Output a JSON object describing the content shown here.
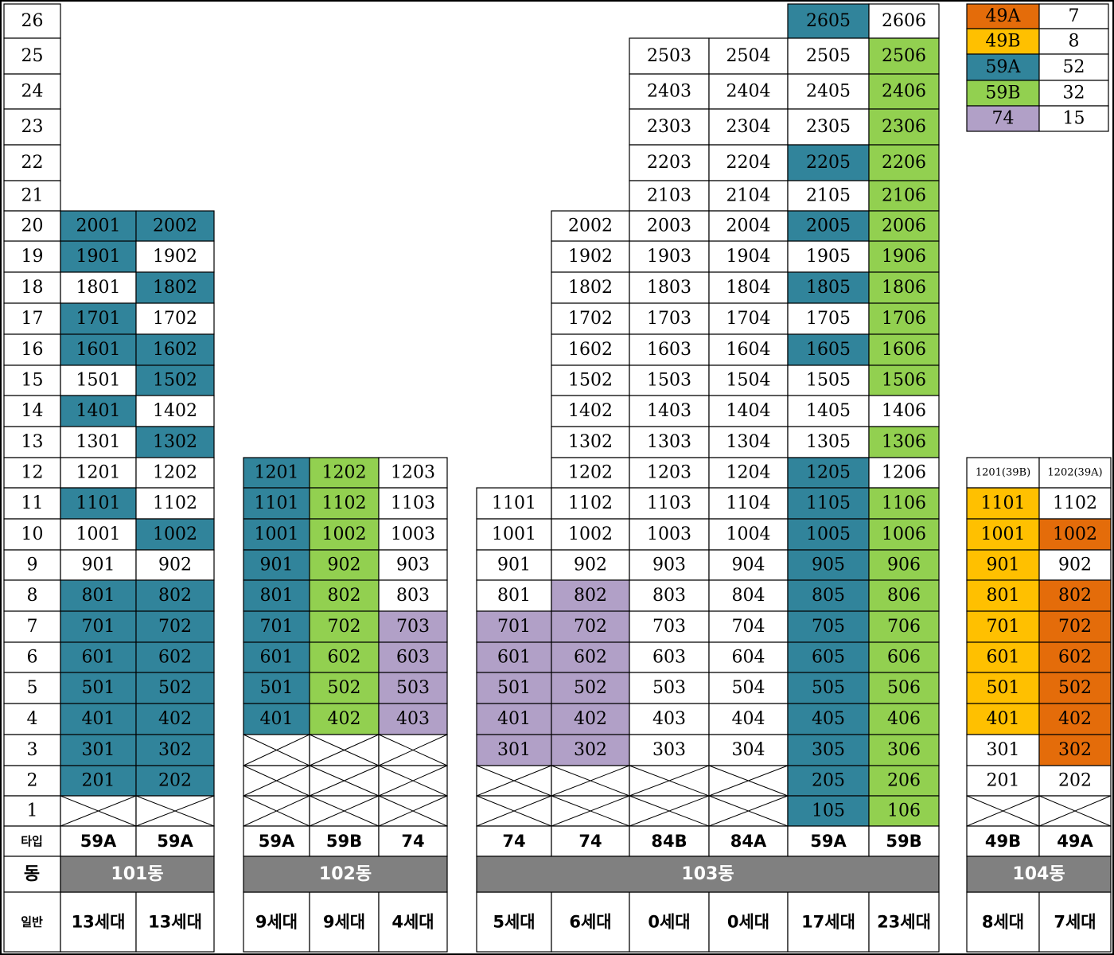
{
  "floor_labels": [
    "26",
    "25",
    "24",
    "23",
    "22",
    "21",
    "20",
    "19",
    "18",
    "17",
    "16",
    "15",
    "14",
    "13",
    "12",
    "11",
    "10",
    "9",
    "8",
    "7",
    "6",
    "5",
    "4",
    "3",
    "2",
    "1"
  ],
  "row_labels": {
    "type": "타입",
    "building": "동",
    "general": "일반"
  },
  "colors": {
    "59A": "#31849b",
    "59B": "#92d050",
    "74": "#b1a0c7",
    "49A": "#e46c0a",
    "49B": "#ffc000",
    "plain": "#ffffff",
    "building_bar": "#808080"
  },
  "legend": [
    {
      "type": "49A",
      "count": "7"
    },
    {
      "type": "49B",
      "count": "8"
    },
    {
      "type": "59A",
      "count": "52"
    },
    {
      "type": "59B",
      "count": "32"
    },
    {
      "type": "74",
      "count": "15"
    }
  ],
  "buildings": [
    {
      "name": "101동",
      "columns": [
        {
          "type_label": "59A",
          "general": "13세대",
          "top_floor": 20,
          "first_floor": 2,
          "units": [
            [
              "2001",
              "59A"
            ],
            [
              "1901",
              "59A"
            ],
            [
              "1801",
              ""
            ],
            [
              "1701",
              "59A"
            ],
            [
              "1601",
              "59A"
            ],
            [
              "1501",
              ""
            ],
            [
              "1401",
              "59A"
            ],
            [
              "1301",
              ""
            ],
            [
              "1201",
              ""
            ],
            [
              "1101",
              "59A"
            ],
            [
              "1001",
              ""
            ],
            [
              "901",
              ""
            ],
            [
              "801",
              "59A"
            ],
            [
              "701",
              "59A"
            ],
            [
              "601",
              "59A"
            ],
            [
              "501",
              "59A"
            ],
            [
              "401",
              "59A"
            ],
            [
              "301",
              "59A"
            ],
            [
              "201",
              "59A"
            ]
          ]
        },
        {
          "type_label": "59A",
          "general": "13세대",
          "top_floor": 20,
          "first_floor": 2,
          "units": [
            [
              "2002",
              "59A"
            ],
            [
              "1902",
              ""
            ],
            [
              "1802",
              "59A"
            ],
            [
              "1702",
              ""
            ],
            [
              "1602",
              "59A"
            ],
            [
              "1502",
              "59A"
            ],
            [
              "1402",
              ""
            ],
            [
              "1302",
              "59A"
            ],
            [
              "1202",
              ""
            ],
            [
              "1102",
              ""
            ],
            [
              "1002",
              "59A"
            ],
            [
              "902",
              ""
            ],
            [
              "802",
              "59A"
            ],
            [
              "702",
              "59A"
            ],
            [
              "602",
              "59A"
            ],
            [
              "502",
              "59A"
            ],
            [
              "402",
              "59A"
            ],
            [
              "302",
              "59A"
            ],
            [
              "202",
              "59A"
            ]
          ]
        }
      ]
    },
    {
      "name": "102동",
      "columns": [
        {
          "type_label": "59A",
          "general": "9세대",
          "top_floor": 12,
          "first_floor": 4,
          "units": [
            [
              "1201",
              "59A"
            ],
            [
              "1101",
              "59A"
            ],
            [
              "1001",
              "59A"
            ],
            [
              "901",
              "59A"
            ],
            [
              "801",
              "59A"
            ],
            [
              "701",
              "59A"
            ],
            [
              "601",
              "59A"
            ],
            [
              "501",
              "59A"
            ],
            [
              "401",
              "59A"
            ]
          ]
        },
        {
          "type_label": "59B",
          "general": "9세대",
          "top_floor": 12,
          "first_floor": 4,
          "units": [
            [
              "1202",
              "59B"
            ],
            [
              "1102",
              "59B"
            ],
            [
              "1002",
              "59B"
            ],
            [
              "902",
              "59B"
            ],
            [
              "802",
              "59B"
            ],
            [
              "702",
              "59B"
            ],
            [
              "602",
              "59B"
            ],
            [
              "502",
              "59B"
            ],
            [
              "402",
              "59B"
            ]
          ]
        },
        {
          "type_label": "74",
          "general": "4세대",
          "top_floor": 12,
          "first_floor": 4,
          "units": [
            [
              "1203",
              ""
            ],
            [
              "1103",
              ""
            ],
            [
              "1003",
              ""
            ],
            [
              "903",
              ""
            ],
            [
              "803",
              ""
            ],
            [
              "703",
              "74"
            ],
            [
              "603",
              "74"
            ],
            [
              "503",
              "74"
            ],
            [
              "403",
              "74"
            ]
          ]
        }
      ]
    },
    {
      "name": "103동",
      "columns": [
        {
          "type_label": "74",
          "general": "5세대",
          "top_floor": 11,
          "first_floor": 3,
          "units": [
            [
              "1101",
              ""
            ],
            [
              "1001",
              ""
            ],
            [
              "901",
              ""
            ],
            [
              "801",
              ""
            ],
            [
              "701",
              "74"
            ],
            [
              "601",
              "74"
            ],
            [
              "501",
              "74"
            ],
            [
              "401",
              "74"
            ],
            [
              "301",
              "74"
            ]
          ]
        },
        {
          "type_label": "74",
          "general": "6세대",
          "top_floor": 20,
          "first_floor": 3,
          "units": [
            [
              "2002",
              ""
            ],
            [
              "1902",
              ""
            ],
            [
              "1802",
              ""
            ],
            [
              "1702",
              ""
            ],
            [
              "1602",
              ""
            ],
            [
              "1502",
              ""
            ],
            [
              "1402",
              ""
            ],
            [
              "1302",
              ""
            ],
            [
              "1202",
              ""
            ],
            [
              "1102",
              ""
            ],
            [
              "1002",
              ""
            ],
            [
              "902",
              ""
            ],
            [
              "802",
              "74"
            ],
            [
              "702",
              "74"
            ],
            [
              "602",
              "74"
            ],
            [
              "502",
              "74"
            ],
            [
              "402",
              "74"
            ],
            [
              "302",
              "74"
            ]
          ]
        },
        {
          "type_label": "84B",
          "general": "0세대",
          "top_floor": 25,
          "first_floor": 3,
          "units": [
            [
              "2503",
              ""
            ],
            [
              "2403",
              ""
            ],
            [
              "2303",
              ""
            ],
            [
              "2203",
              ""
            ],
            [
              "2103",
              ""
            ],
            [
              "2003",
              ""
            ],
            [
              "1903",
              ""
            ],
            [
              "1803",
              ""
            ],
            [
              "1703",
              ""
            ],
            [
              "1603",
              ""
            ],
            [
              "1503",
              ""
            ],
            [
              "1403",
              ""
            ],
            [
              "1303",
              ""
            ],
            [
              "1203",
              ""
            ],
            [
              "1103",
              ""
            ],
            [
              "1003",
              ""
            ],
            [
              "903",
              ""
            ],
            [
              "803",
              ""
            ],
            [
              "703",
              ""
            ],
            [
              "603",
              ""
            ],
            [
              "503",
              ""
            ],
            [
              "403",
              ""
            ],
            [
              "303",
              ""
            ]
          ]
        },
        {
          "type_label": "84A",
          "general": "0세대",
          "top_floor": 25,
          "first_floor": 3,
          "units": [
            [
              "2504",
              ""
            ],
            [
              "2404",
              ""
            ],
            [
              "2304",
              ""
            ],
            [
              "2204",
              ""
            ],
            [
              "2104",
              ""
            ],
            [
              "2004",
              ""
            ],
            [
              "1904",
              ""
            ],
            [
              "1804",
              ""
            ],
            [
              "1704",
              ""
            ],
            [
              "1604",
              ""
            ],
            [
              "1504",
              ""
            ],
            [
              "1404",
              ""
            ],
            [
              "1304",
              ""
            ],
            [
              "1204",
              ""
            ],
            [
              "1104",
              ""
            ],
            [
              "1004",
              ""
            ],
            [
              "904",
              ""
            ],
            [
              "804",
              ""
            ],
            [
              "704",
              ""
            ],
            [
              "604",
              ""
            ],
            [
              "504",
              ""
            ],
            [
              "404",
              ""
            ],
            [
              "304",
              ""
            ]
          ]
        },
        {
          "type_label": "59A",
          "general": "17세대",
          "top_floor": 26,
          "first_floor": 1,
          "units": [
            [
              "2605",
              "59A"
            ],
            [
              "2505",
              ""
            ],
            [
              "2405",
              ""
            ],
            [
              "2305",
              ""
            ],
            [
              "2205",
              "59A"
            ],
            [
              "2105",
              ""
            ],
            [
              "2005",
              "59A"
            ],
            [
              "1905",
              ""
            ],
            [
              "1805",
              "59A"
            ],
            [
              "1705",
              ""
            ],
            [
              "1605",
              "59A"
            ],
            [
              "1505",
              ""
            ],
            [
              "1405",
              ""
            ],
            [
              "1305",
              ""
            ],
            [
              "1205",
              "59A"
            ],
            [
              "1105",
              "59A"
            ],
            [
              "1005",
              "59A"
            ],
            [
              "905",
              "59A"
            ],
            [
              "805",
              "59A"
            ],
            [
              "705",
              "59A"
            ],
            [
              "605",
              "59A"
            ],
            [
              "505",
              "59A"
            ],
            [
              "405",
              "59A"
            ],
            [
              "305",
              "59A"
            ],
            [
              "205",
              "59A"
            ],
            [
              "105",
              "59A"
            ]
          ]
        },
        {
          "type_label": "59B",
          "general": "23세대",
          "top_floor": 26,
          "first_floor": 1,
          "units": [
            [
              "2606",
              ""
            ],
            [
              "2506",
              "59B"
            ],
            [
              "2406",
              "59B"
            ],
            [
              "2306",
              "59B"
            ],
            [
              "2206",
              "59B"
            ],
            [
              "2106",
              "59B"
            ],
            [
              "2006",
              "59B"
            ],
            [
              "1906",
              "59B"
            ],
            [
              "1806",
              "59B"
            ],
            [
              "1706",
              "59B"
            ],
            [
              "1606",
              "59B"
            ],
            [
              "1506",
              "59B"
            ],
            [
              "1406",
              ""
            ],
            [
              "1306",
              "59B"
            ],
            [
              "1206",
              ""
            ],
            [
              "1106",
              "59B"
            ],
            [
              "1006",
              "59B"
            ],
            [
              "906",
              "59B"
            ],
            [
              "806",
              "59B"
            ],
            [
              "706",
              "59B"
            ],
            [
              "606",
              "59B"
            ],
            [
              "506",
              "59B"
            ],
            [
              "406",
              "59B"
            ],
            [
              "306",
              "59B"
            ],
            [
              "206",
              "59B"
            ],
            [
              "106",
              "59B"
            ]
          ]
        }
      ]
    },
    {
      "name": "104동",
      "columns": [
        {
          "type_label": "49B",
          "general": "8세대",
          "top_floor": 12,
          "first_floor": 2,
          "units": [
            [
              "1201(39B)",
              "small"
            ],
            [
              "1101",
              "49B"
            ],
            [
              "1001",
              "49B"
            ],
            [
              "901",
              "49B"
            ],
            [
              "801",
              "49B"
            ],
            [
              "701",
              "49B"
            ],
            [
              "601",
              "49B"
            ],
            [
              "501",
              "49B"
            ],
            [
              "401",
              "49B"
            ],
            [
              "301",
              ""
            ],
            [
              "201",
              ""
            ]
          ]
        },
        {
          "type_label": "49A",
          "general": "7세대",
          "top_floor": 12,
          "first_floor": 2,
          "units": [
            [
              "1202(39A)",
              "small"
            ],
            [
              "1102",
              ""
            ],
            [
              "1002",
              "49A"
            ],
            [
              "902",
              ""
            ],
            [
              "802",
              "49A"
            ],
            [
              "702",
              "49A"
            ],
            [
              "602",
              "49A"
            ],
            [
              "502",
              "49A"
            ],
            [
              "402",
              "49A"
            ],
            [
              "302",
              "49A"
            ],
            [
              "202",
              ""
            ]
          ]
        }
      ]
    }
  ]
}
